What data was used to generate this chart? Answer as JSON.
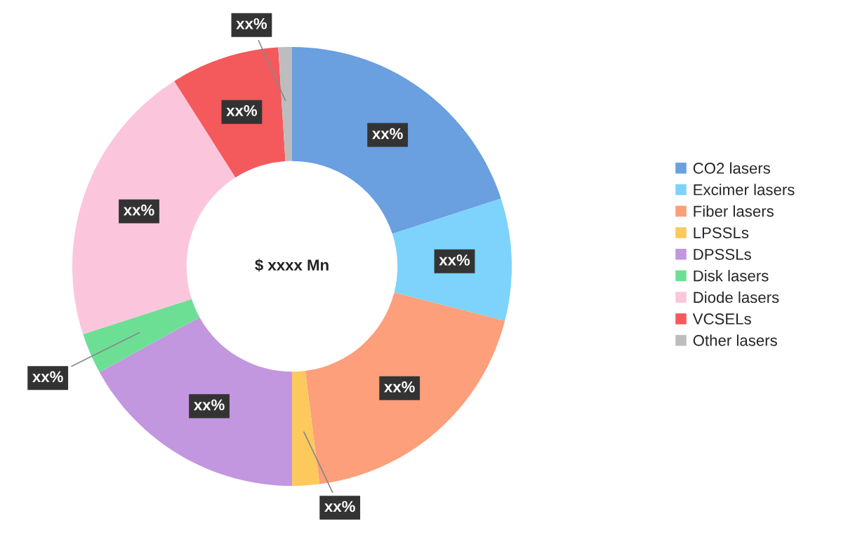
{
  "chart_data": {
    "type": "donut",
    "categories": [
      "CO2 lasers",
      "Excimer lasers",
      "Fiber lasers",
      "LPSSLs",
      "DPSSLs",
      "Disk lasers",
      "Diode lasers",
      "VCSELs",
      "Other lasers"
    ],
    "values": [
      20,
      9,
      19,
      2,
      17,
      3,
      21,
      8,
      1
    ],
    "colors": [
      "#6a9fe0",
      "#7dd3fb",
      "#fc9f7a",
      "#fdc85c",
      "#c396e0",
      "#6ddf95",
      "#fbc6dc",
      "#f4595c",
      "#bdbdbd"
    ],
    "value_labels": [
      "xx%",
      "xx%",
      "xx%",
      "xx%",
      "xx%",
      "xx%",
      "xx%",
      "xx%",
      "xx%"
    ],
    "annotations": [
      "$ xxxx Mn"
    ],
    "legend": "right"
  }
}
